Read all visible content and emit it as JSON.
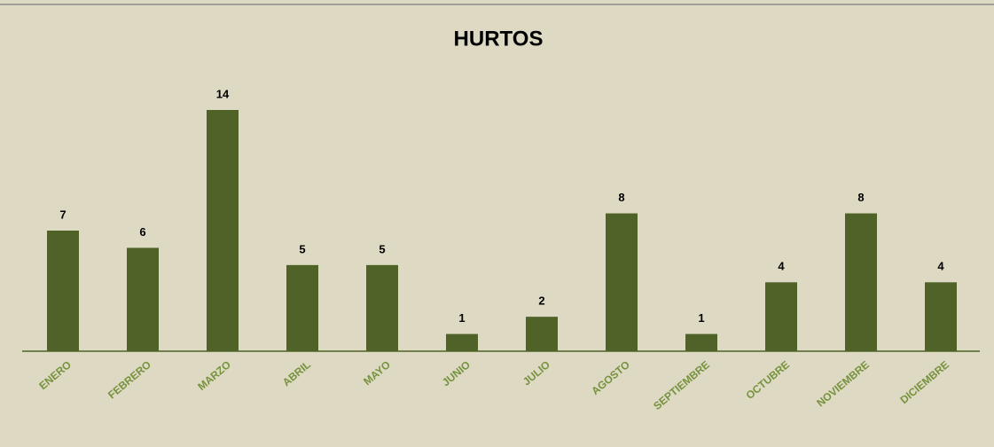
{
  "chart_data": {
    "type": "bar",
    "title": "HURTOS",
    "categories": [
      "ENERO",
      "FEBRERO",
      "MARZO",
      "ABRIL",
      "MAYO",
      "JUNIO",
      "JULIO",
      "AGOSTO",
      "SEPTIEMBRE",
      "OCTUBRE",
      "NOVIEMBRE",
      "DICIEMBRE"
    ],
    "values": [
      7,
      6,
      14,
      5,
      5,
      1,
      2,
      8,
      1,
      4,
      8,
      4
    ],
    "color": "#4f6228"
  }
}
